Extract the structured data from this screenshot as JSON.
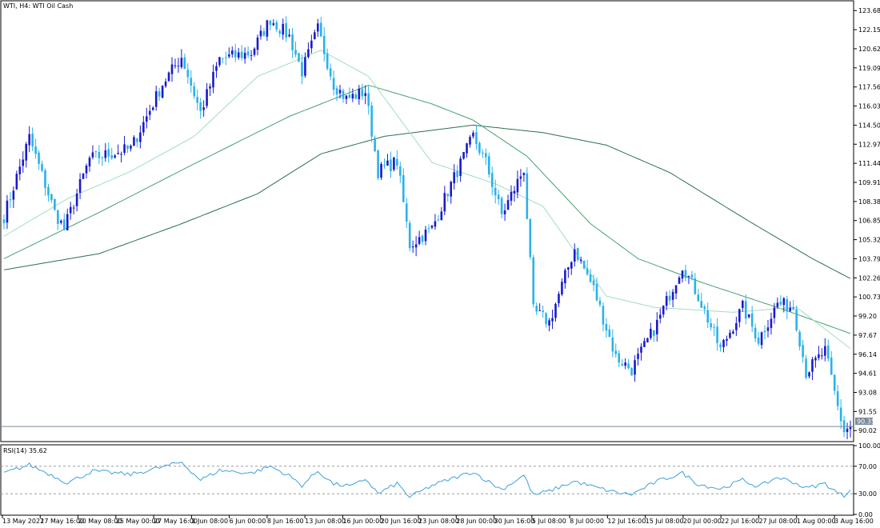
{
  "chart_title": "WTI, H4:  WTI Oil Cash",
  "rsi_label": "RSI(14) 35.62",
  "current_price_label": "90.35",
  "colors": {
    "background": "#ffffff",
    "frame": "#000000",
    "bull_candle": "#1a1acd",
    "bear_candle": "#29b2ea",
    "ma_fast": "#a3dcc2",
    "ma_mid": "#48a073",
    "ma_slow": "#2e7050",
    "price_line": "#7a8a99",
    "rsi_line": "#3da0dc",
    "rsi_level": "#9a9a9a"
  },
  "chart_data": [
    {
      "type": "candlestick",
      "title": "WTI, H4:  WTI Oil Cash",
      "ylim": [
        89.2,
        124.4
      ],
      "y_ticks": [
        "123.68",
        "122.15",
        "120.62",
        "119.09",
        "117.56",
        "116.03",
        "114.50",
        "112.97",
        "111.44",
        "109.91",
        "108.38",
        "106.85",
        "105.32",
        "103.79",
        "102.26",
        "100.73",
        "99.20",
        "97.67",
        "96.14",
        "94.61",
        "93.08",
        "91.55",
        "90.02"
      ],
      "x_ticks": [
        "13 May 2022",
        "17 May 16:00",
        "20 May 08:00",
        "25 May 00:00",
        "27 May 16:00",
        "1 Jun 08:00",
        "6 Jun 00:00",
        "8 Jun 16:00",
        "13 Jun 08:00",
        "16 Jun 00:00",
        "20 Jun 16:00",
        "23 Jun 08:00",
        "28 Jun 00:00",
        "30 Jun 16:00",
        "5 Jul 08:00",
        "8 Jul 00:00",
        "12 Jul 16:00",
        "15 Jul 08:00",
        "20 Jul 00:00",
        "22 Jul 16:00",
        "27 Jul 08:00",
        "1 Aug 00:00",
        "3 Aug 16:00"
      ],
      "close_anchors": [
        {
          "bar": 0,
          "value": 107.2
        },
        {
          "bar": 8,
          "value": 113.5
        },
        {
          "bar": 16,
          "value": 107.5
        },
        {
          "bar": 19,
          "value": 106.2
        },
        {
          "bar": 27,
          "value": 111.8
        },
        {
          "bar": 40,
          "value": 112.6
        },
        {
          "bar": 50,
          "value": 117.8
        },
        {
          "bar": 56,
          "value": 120.0
        },
        {
          "bar": 62,
          "value": 115.5
        },
        {
          "bar": 68,
          "value": 119.8
        },
        {
          "bar": 78,
          "value": 120.3
        },
        {
          "bar": 84,
          "value": 123.0
        },
        {
          "bar": 90,
          "value": 121.6
        },
        {
          "bar": 94,
          "value": 118.8
        },
        {
          "bar": 99,
          "value": 122.2
        },
        {
          "bar": 104,
          "value": 117.8
        },
        {
          "bar": 108,
          "value": 116.6
        },
        {
          "bar": 114,
          "value": 117.2
        },
        {
          "bar": 118,
          "value": 110.8
        },
        {
          "bar": 124,
          "value": 111.6
        },
        {
          "bar": 128,
          "value": 104.9
        },
        {
          "bar": 135,
          "value": 106.2
        },
        {
          "bar": 140,
          "value": 109.2
        },
        {
          "bar": 148,
          "value": 113.6
        },
        {
          "bar": 152,
          "value": 111.5
        },
        {
          "bar": 157,
          "value": 107.3
        },
        {
          "bar": 164,
          "value": 111.0
        },
        {
          "bar": 167,
          "value": 99.6
        },
        {
          "bar": 172,
          "value": 98.7
        },
        {
          "bar": 180,
          "value": 104.6
        },
        {
          "bar": 186,
          "value": 101.4
        },
        {
          "bar": 193,
          "value": 95.9
        },
        {
          "bar": 198,
          "value": 94.9
        },
        {
          "bar": 206,
          "value": 98.6
        },
        {
          "bar": 214,
          "value": 103.3
        },
        {
          "bar": 219,
          "value": 100.8
        },
        {
          "bar": 226,
          "value": 96.5
        },
        {
          "bar": 233,
          "value": 99.9
        },
        {
          "bar": 238,
          "value": 97.3
        },
        {
          "bar": 244,
          "value": 100.2
        },
        {
          "bar": 249,
          "value": 99.9
        },
        {
          "bar": 253,
          "value": 94.7
        },
        {
          "bar": 259,
          "value": 96.4
        },
        {
          "bar": 263,
          "value": 91.9
        },
        {
          "bar": 265,
          "value": 90.0
        },
        {
          "bar": 267,
          "value": 90.35
        }
      ],
      "ma_fast_anchors": [
        {
          "bar": 0,
          "value": 105.6
        },
        {
          "bar": 20,
          "value": 108.6
        },
        {
          "bar": 40,
          "value": 110.8
        },
        {
          "bar": 60,
          "value": 113.6
        },
        {
          "bar": 80,
          "value": 118.4
        },
        {
          "bar": 100,
          "value": 120.5
        },
        {
          "bar": 115,
          "value": 118.4
        },
        {
          "bar": 135,
          "value": 111.5
        },
        {
          "bar": 155,
          "value": 109.8
        },
        {
          "bar": 170,
          "value": 108.0
        },
        {
          "bar": 190,
          "value": 100.8
        },
        {
          "bar": 205,
          "value": 99.9
        },
        {
          "bar": 230,
          "value": 99.5
        },
        {
          "bar": 250,
          "value": 99.9
        },
        {
          "bar": 267,
          "value": 96.6
        }
      ],
      "ma_mid_anchors": [
        {
          "bar": 0,
          "value": 103.8
        },
        {
          "bar": 30,
          "value": 107.5
        },
        {
          "bar": 60,
          "value": 111.4
        },
        {
          "bar": 90,
          "value": 115.2
        },
        {
          "bar": 115,
          "value": 117.7
        },
        {
          "bar": 135,
          "value": 116.2
        },
        {
          "bar": 148,
          "value": 114.9
        },
        {
          "bar": 165,
          "value": 112.0
        },
        {
          "bar": 185,
          "value": 106.6
        },
        {
          "bar": 200,
          "value": 103.8
        },
        {
          "bar": 220,
          "value": 101.9
        },
        {
          "bar": 245,
          "value": 99.8
        },
        {
          "bar": 267,
          "value": 97.8
        }
      ],
      "ma_slow_anchors": [
        {
          "bar": 0,
          "value": 102.9
        },
        {
          "bar": 30,
          "value": 104.2
        },
        {
          "bar": 55,
          "value": 106.5
        },
        {
          "bar": 80,
          "value": 109.0
        },
        {
          "bar": 100,
          "value": 112.2
        },
        {
          "bar": 120,
          "value": 113.6
        },
        {
          "bar": 148,
          "value": 114.5
        },
        {
          "bar": 170,
          "value": 113.9
        },
        {
          "bar": 190,
          "value": 112.9
        },
        {
          "bar": 210,
          "value": 110.7
        },
        {
          "bar": 235,
          "value": 106.8
        },
        {
          "bar": 255,
          "value": 103.8
        },
        {
          "bar": 267,
          "value": 102.2
        }
      ],
      "current_price": 90.35
    },
    {
      "type": "line",
      "title": "RSI(14) 35.62",
      "ylim": [
        0,
        100
      ],
      "y_ticks": [
        "100.00",
        "70.00",
        "30.00",
        "0.00"
      ],
      "levels": [
        70,
        30
      ],
      "last_value": 35.62,
      "rsi_anchors": [
        {
          "bar": 0,
          "value": 60
        },
        {
          "bar": 8,
          "value": 72
        },
        {
          "bar": 16,
          "value": 55
        },
        {
          "bar": 20,
          "value": 46
        },
        {
          "bar": 28,
          "value": 63
        },
        {
          "bar": 40,
          "value": 58
        },
        {
          "bar": 50,
          "value": 69
        },
        {
          "bar": 56,
          "value": 76
        },
        {
          "bar": 62,
          "value": 50
        },
        {
          "bar": 68,
          "value": 64
        },
        {
          "bar": 78,
          "value": 60
        },
        {
          "bar": 84,
          "value": 70
        },
        {
          "bar": 90,
          "value": 56
        },
        {
          "bar": 94,
          "value": 42
        },
        {
          "bar": 99,
          "value": 63
        },
        {
          "bar": 104,
          "value": 44
        },
        {
          "bar": 110,
          "value": 41
        },
        {
          "bar": 114,
          "value": 52
        },
        {
          "bar": 118,
          "value": 30
        },
        {
          "bar": 124,
          "value": 45
        },
        {
          "bar": 128,
          "value": 25
        },
        {
          "bar": 135,
          "value": 42
        },
        {
          "bar": 140,
          "value": 50
        },
        {
          "bar": 148,
          "value": 62
        },
        {
          "bar": 152,
          "value": 50
        },
        {
          "bar": 157,
          "value": 36
        },
        {
          "bar": 164,
          "value": 57
        },
        {
          "bar": 167,
          "value": 28
        },
        {
          "bar": 172,
          "value": 34
        },
        {
          "bar": 180,
          "value": 48
        },
        {
          "bar": 186,
          "value": 40
        },
        {
          "bar": 193,
          "value": 32
        },
        {
          "bar": 198,
          "value": 29
        },
        {
          "bar": 206,
          "value": 48
        },
        {
          "bar": 214,
          "value": 60
        },
        {
          "bar": 219,
          "value": 44
        },
        {
          "bar": 226,
          "value": 37
        },
        {
          "bar": 233,
          "value": 50
        },
        {
          "bar": 238,
          "value": 40
        },
        {
          "bar": 244,
          "value": 54
        },
        {
          "bar": 249,
          "value": 47
        },
        {
          "bar": 253,
          "value": 38
        },
        {
          "bar": 259,
          "value": 45
        },
        {
          "bar": 263,
          "value": 31
        },
        {
          "bar": 265,
          "value": 27
        },
        {
          "bar": 267,
          "value": 35.62
        }
      ]
    }
  ]
}
